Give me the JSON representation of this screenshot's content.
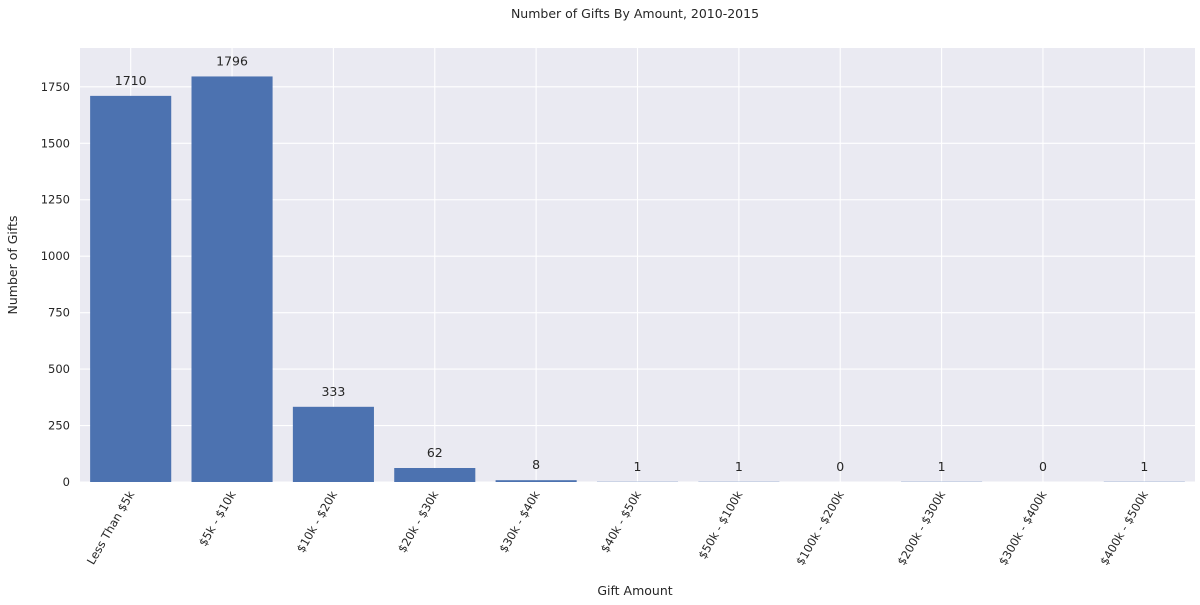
{
  "chart_data": {
    "type": "bar",
    "title": "Number of Gifts By Amount, 2010-2015",
    "xlabel": "Gift Amount",
    "ylabel": "Number of Gifts",
    "categories": [
      "Less Than $5k",
      "$5k - $10k",
      "$10k - $20k",
      "$20k - $30k",
      "$30k - $40k",
      "$40k - $50k",
      "$50k - $100k",
      "$100k - $200k",
      "$200k - $300k",
      "$300k - $400k",
      "$400k - $500k"
    ],
    "values": [
      1710,
      1796,
      333,
      62,
      8,
      1,
      1,
      0,
      1,
      0,
      1
    ],
    "ylim": [
      0,
      1922
    ],
    "yticks": [
      0,
      250,
      500,
      750,
      1000,
      1250,
      1500,
      1750
    ],
    "grid": true,
    "bar_color": "#4c72b0",
    "background_color": "#eaeaf2",
    "grid_color": "#ffffff"
  }
}
